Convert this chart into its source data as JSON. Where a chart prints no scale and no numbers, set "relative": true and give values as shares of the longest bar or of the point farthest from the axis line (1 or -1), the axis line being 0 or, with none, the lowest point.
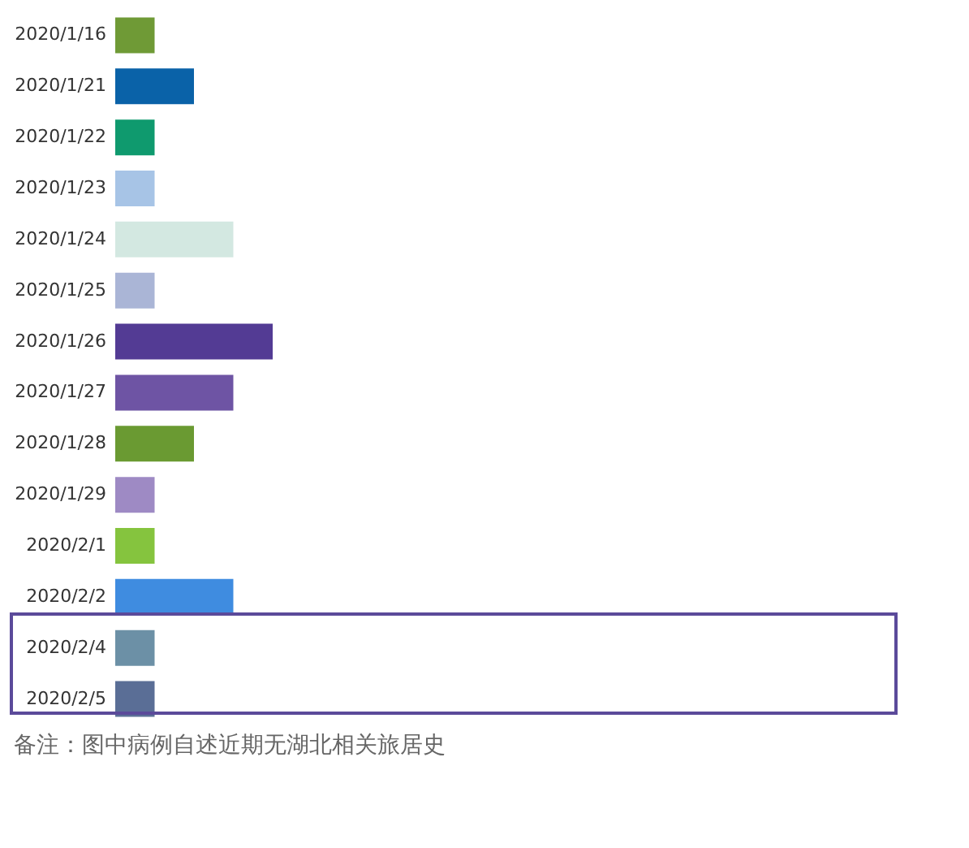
{
  "chart_data": {
    "type": "bar",
    "orientation": "horizontal",
    "relative": true,
    "categories": [
      "2020/1/16",
      "2020/1/21",
      "2020/1/22",
      "2020/1/23",
      "2020/1/24",
      "2020/1/25",
      "2020/1/26",
      "2020/1/27",
      "2020/1/28",
      "2020/1/29",
      "2020/2/1",
      "2020/2/2",
      "2020/2/4",
      "2020/2/5"
    ],
    "values": [
      0.25,
      0.5,
      0.25,
      0.25,
      0.75,
      0.25,
      1,
      0.75,
      0.5,
      0.25,
      0.25,
      0.75,
      0.25,
      0.25
    ],
    "colors": [
      "#6f9a36",
      "#0a62a8",
      "#0f9a6e",
      "#a7c4e6",
      "#d3e8e1",
      "#aab5d6",
      "#533b94",
      "#6e54a4",
      "#6a9a32",
      "#9e8ac4",
      "#85c43e",
      "#3f8ce0",
      "#6c90a6",
      "#5a6e96"
    ],
    "annotations": [
      "备注：图中病例自述近期无湖北相关旅居史"
    ]
  }
}
